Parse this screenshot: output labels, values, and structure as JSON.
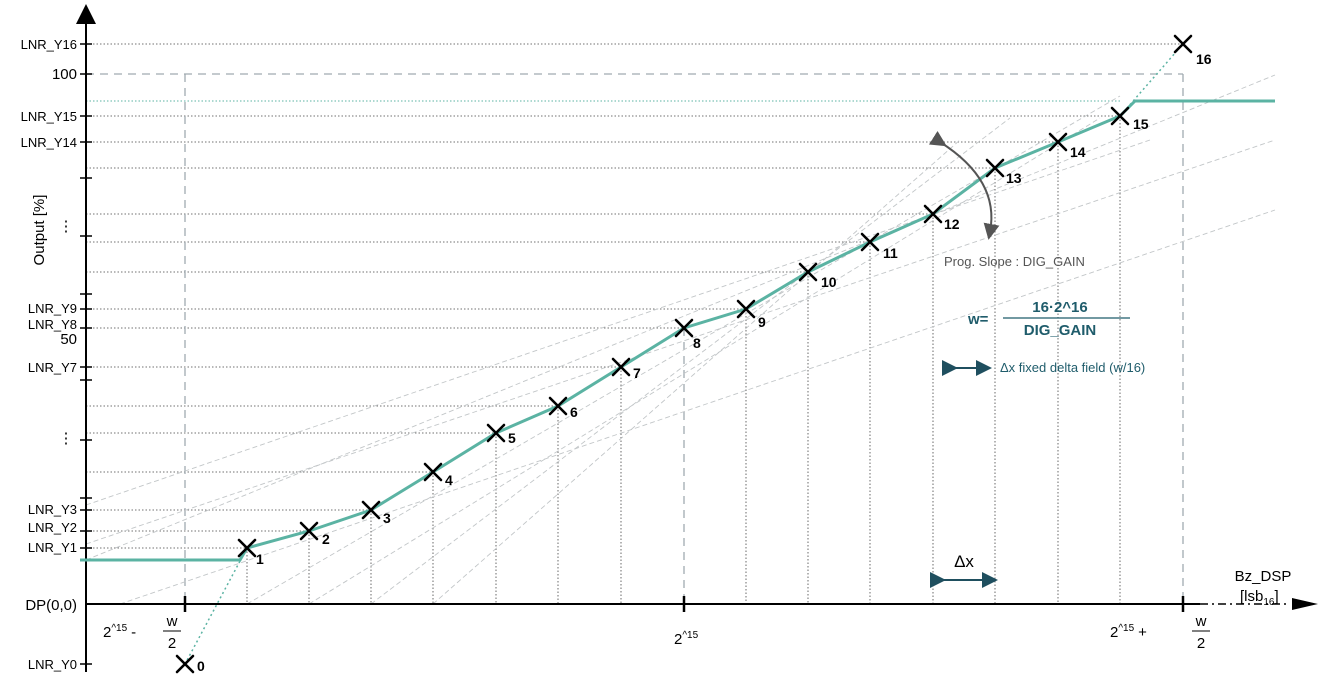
{
  "axes": {
    "y_title": "Output [%]",
    "x_title_line1": "Bz_DSP",
    "x_title_line2_main": "[lsb",
    "x_title_line2_sub": "16",
    "x_title_line2_end": "]",
    "origin": "DP(0,0)"
  },
  "y_labels": {
    "y0": "LNR_Y0",
    "y1": "LNR_Y1",
    "y2": "LNR_Y2",
    "y3": "LNR_Y3",
    "y7": "LNR_Y7",
    "y8": "LNR_Y8",
    "y9": "LNR_Y9",
    "y14": "LNR_Y14",
    "y15": "LNR_Y15",
    "y16": "LNR_Y16",
    "hundred": "100",
    "fifty": "50",
    "ellipsis": "⋮"
  },
  "x_labels": {
    "left_base": "2",
    "left_exp": "^15",
    "left_op": "-",
    "center_base": "2",
    "center_exp": "^15",
    "right_base": "2",
    "right_exp": "^15",
    "right_op": "+",
    "frac_num": "w",
    "frac_den": "2"
  },
  "points": [
    "0",
    "1",
    "2",
    "3",
    "4",
    "5",
    "6",
    "7",
    "8",
    "9",
    "10",
    "11",
    "12",
    "13",
    "14",
    "15",
    "16"
  ],
  "annotations": {
    "slope": "Prog. Slope : DIG_GAIN",
    "w_lhs": "w=",
    "w_num": "16·2^16",
    "w_den": "DIG_GAIN",
    "delta_field": "Δx fixed delta field (w/16)",
    "delta_x": "Δx"
  },
  "colors": {
    "curve": "#5bb3a3",
    "axis": "#000000",
    "guide_dashed": "#a0aab0",
    "annotation_text": "#1f5c6b"
  }
}
